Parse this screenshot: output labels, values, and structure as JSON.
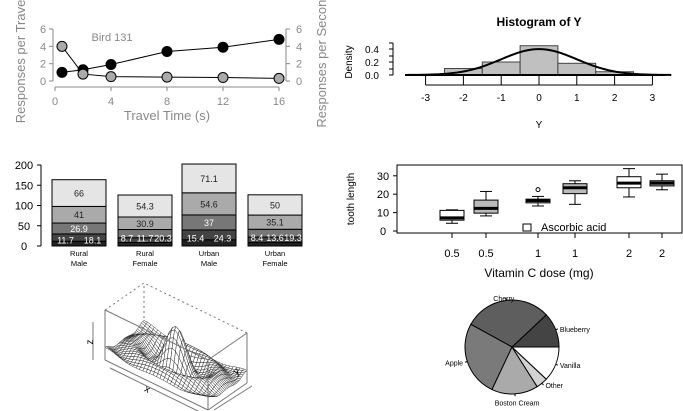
{
  "chart_data": [
    {
      "type": "line",
      "annotation": "Bird 131",
      "xlabel": "Travel Time (s)",
      "ylabel_left": "Responses per Travel",
      "ylabel_right": "Responses per Second",
      "x": [
        0.5,
        2,
        4,
        8,
        12,
        16
      ],
      "xticks": [
        0,
        4,
        8,
        12,
        16
      ],
      "yticks": [
        0,
        2,
        4,
        6
      ],
      "ylim": [
        0,
        6
      ],
      "series": [
        {
          "color": "#000000",
          "values": [
            1.0,
            1.3,
            1.9,
            3.4,
            3.9,
            4.8
          ]
        },
        {
          "color": "#aaaaaa",
          "values": [
            4.0,
            0.8,
            0.5,
            0.45,
            0.4,
            0.3
          ]
        }
      ]
    },
    {
      "type": "bar",
      "title": "Histogram of Y",
      "xlabel": "Y",
      "ylabel": "Density",
      "bin_edges": [
        -2.5,
        -1.5,
        -0.5,
        0.5,
        1.5,
        2.5
      ],
      "values": [
        0.1,
        0.2,
        0.45,
        0.18,
        0.05
      ],
      "xticks": [
        -3,
        -2,
        -1,
        0,
        1,
        2,
        3
      ],
      "yticks": [
        "0.0",
        "0.2",
        "0.4"
      ],
      "curve": "normal density"
    },
    {
      "type": "bar",
      "stacked": true,
      "categories": [
        "Rural\nMale",
        "Rural\nFemale",
        "Urban\nMale",
        "Urban\nFemale"
      ],
      "yticks": [
        0,
        50,
        100,
        150,
        200
      ],
      "ylim": [
        0,
        200
      ],
      "colors": [
        "#222222",
        "#444444",
        "#777777",
        "#aaaaaa",
        "#e5e5e5"
      ],
      "series": [
        {
          "values": [
            11.7,
            8.7,
            15.4,
            8.4
          ]
        },
        {
          "values": [
            18.1,
            11.7,
            24.3,
            13.6
          ]
        },
        {
          "values": [
            26.9,
            20.3,
            37,
            19.3
          ]
        },
        {
          "values": [
            41,
            30.9,
            54.6,
            35.1
          ]
        },
        {
          "values": [
            66,
            54.3,
            71.1,
            50
          ]
        }
      ]
    },
    {
      "type": "box",
      "xlabel": "Vitamin C dose (mg)",
      "ylabel": "tooth length",
      "categories": [
        "0.5",
        "0.5",
        "1",
        "1",
        "2",
        "2"
      ],
      "yticks": [
        0,
        10,
        20,
        30
      ],
      "legend": "Ascorbic acid",
      "boxes": [
        {
          "min": 4.2,
          "q1": 5.9,
          "median": 7.1,
          "q3": 11.2,
          "max": 11.5,
          "fill": "#ffffff"
        },
        {
          "min": 8.2,
          "q1": 9.7,
          "median": 12.3,
          "q3": 16.8,
          "max": 21.5,
          "fill": "#bbbbbb"
        },
        {
          "min": 13.6,
          "q1": 15.3,
          "median": 16.5,
          "q3": 17.3,
          "max": 18.8,
          "outlier": 22.5,
          "fill": "#ffffff"
        },
        {
          "min": 14.5,
          "q1": 20.3,
          "median": 23.5,
          "q3": 25.7,
          "max": 27.3,
          "fill": "#bbbbbb"
        },
        {
          "min": 18.5,
          "q1": 23.5,
          "median": 26,
          "q3": 29.5,
          "max": 33.9,
          "fill": "#ffffff"
        },
        {
          "min": 22.4,
          "q1": 24.5,
          "median": 26,
          "q3": 27.3,
          "max": 30.9,
          "fill": "#bbbbbb"
        }
      ]
    },
    {
      "type": "surface",
      "xlabel": "x",
      "ylabel": "y",
      "zlabel": "z"
    },
    {
      "type": "pie",
      "labels": [
        "Blueberry",
        "Cherry",
        "Apple",
        "Boston Cream",
        "Other",
        "Vanilla"
      ],
      "values": [
        0.12,
        0.3,
        0.26,
        0.16,
        0.04,
        0.12
      ],
      "colors": [
        "#444444",
        "#5e5e5e",
        "#7a7a7a",
        "#aaaaaa",
        "#d3d3d3",
        "#ffffff"
      ]
    }
  ]
}
